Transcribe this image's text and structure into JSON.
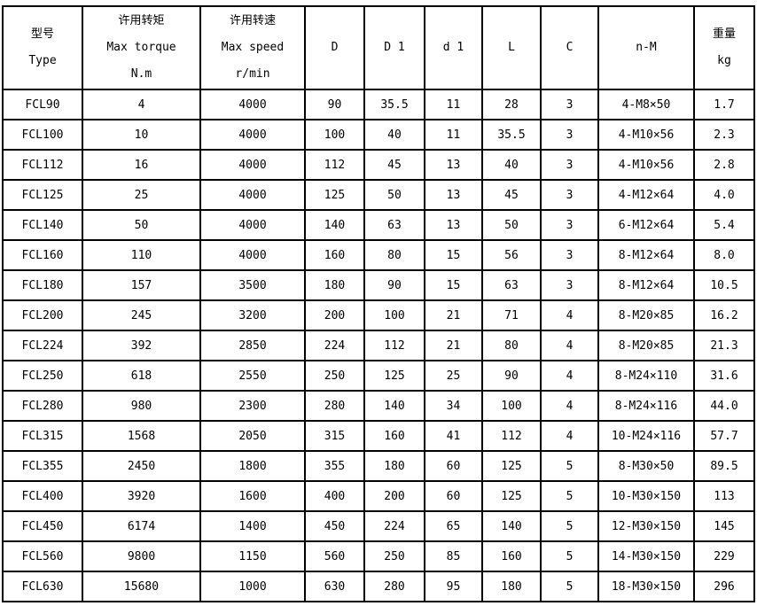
{
  "headers": [
    [
      "型号",
      "Type"
    ],
    [
      "许用转矩",
      "Max torque",
      "N.m"
    ],
    [
      "许用转速",
      "Max speed",
      "r/min"
    ],
    [
      "D"
    ],
    [
      "D 1"
    ],
    [
      "d 1"
    ],
    [
      "L"
    ],
    [
      "C"
    ],
    [
      "n-M"
    ],
    [
      "重量",
      "kg"
    ]
  ],
  "rows": [
    [
      "FCL90",
      "4",
      "4000",
      "90",
      "35.5",
      "11",
      "28",
      "3",
      "4-M8×50",
      "1.7"
    ],
    [
      "FCL100",
      "10",
      "4000",
      "100",
      "40",
      "11",
      "35.5",
      "3",
      "4-M10×56",
      "2.3"
    ],
    [
      "FCL112",
      "16",
      "4000",
      "112",
      "45",
      "13",
      "40",
      "3",
      "4-M10×56",
      "2.8"
    ],
    [
      "FCL125",
      "25",
      "4000",
      "125",
      "50",
      "13",
      "45",
      "3",
      "4-M12×64",
      "4.0"
    ],
    [
      "FCL140",
      "50",
      "4000",
      "140",
      "63",
      "13",
      "50",
      "3",
      "6-M12×64",
      "5.4"
    ],
    [
      "FCL160",
      "110",
      "4000",
      "160",
      "80",
      "15",
      "56",
      "3",
      "8-M12×64",
      "8.0"
    ],
    [
      "FCL180",
      "157",
      "3500",
      "180",
      "90",
      "15",
      "63",
      "3",
      "8-M12×64",
      "10.5"
    ],
    [
      "FCL200",
      "245",
      "3200",
      "200",
      "100",
      "21",
      "71",
      "4",
      "8-M20×85",
      "16.2"
    ],
    [
      "FCL224",
      "392",
      "2850",
      "224",
      "112",
      "21",
      "80",
      "4",
      "8-M20×85",
      "21.3"
    ],
    [
      "FCL250",
      "618",
      "2550",
      "250",
      "125",
      "25",
      "90",
      "4",
      "8-M24×110",
      "31.6"
    ],
    [
      "FCL280",
      "980",
      "2300",
      "280",
      "140",
      "34",
      "100",
      "4",
      "8-M24×116",
      "44.0"
    ],
    [
      "FCL315",
      "1568",
      "2050",
      "315",
      "160",
      "41",
      "112",
      "4",
      "10-M24×116",
      "57.7"
    ],
    [
      "FCL355",
      "2450",
      "1800",
      "355",
      "180",
      "60",
      "125",
      "5",
      "8-M30×50",
      "89.5"
    ],
    [
      "FCL400",
      "3920",
      "1600",
      "400",
      "200",
      "60",
      "125",
      "5",
      "10-M30×150",
      "113"
    ],
    [
      "FCL450",
      "6174",
      "1400",
      "450",
      "224",
      "65",
      "140",
      "5",
      "12-M30×150",
      "145"
    ],
    [
      "FCL560",
      "9800",
      "1150",
      "560",
      "250",
      "85",
      "160",
      "5",
      "14-M30×150",
      "229"
    ],
    [
      "FCL630",
      "15680",
      "1000",
      "630",
      "280",
      "95",
      "180",
      "5",
      "18-M30×150",
      "296"
    ]
  ]
}
